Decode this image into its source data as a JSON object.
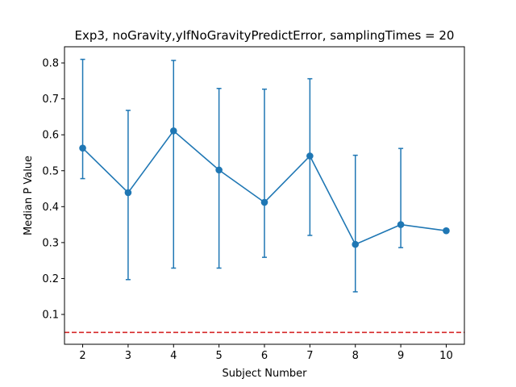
{
  "chart_data": {
    "type": "line",
    "title": "Exp3, noGravity,yIfNoGravityPredictError, samplingTimes = 20",
    "xlabel": "Subject Number",
    "ylabel": "Median P Value",
    "xlim": [
      1.6,
      10.4
    ],
    "ylim": [
      0.017,
      0.845
    ],
    "xticks": [
      2,
      3,
      4,
      5,
      6,
      7,
      8,
      9,
      10
    ],
    "yticks": [
      0.1,
      0.2,
      0.3,
      0.4,
      0.5,
      0.6,
      0.7,
      0.8
    ],
    "grid": false,
    "series": [
      {
        "color": "#1f77b4",
        "x": [
          2,
          3,
          4,
          5,
          6,
          7,
          8,
          9,
          10
        ],
        "y": [
          0.563,
          0.439,
          0.611,
          0.502,
          0.412,
          0.541,
          0.295,
          0.35,
          0.333
        ],
        "err_low": [
          0.478,
          0.197,
          0.229,
          0.229,
          0.259,
          0.32,
          0.163,
          0.286,
          0.333
        ],
        "err_high": [
          0.81,
          0.668,
          0.807,
          0.729,
          0.727,
          0.756,
          0.543,
          0.562,
          0.333
        ]
      }
    ],
    "reference_line": {
      "y": 0.05,
      "color": "#d62728",
      "style": "dashed"
    }
  }
}
